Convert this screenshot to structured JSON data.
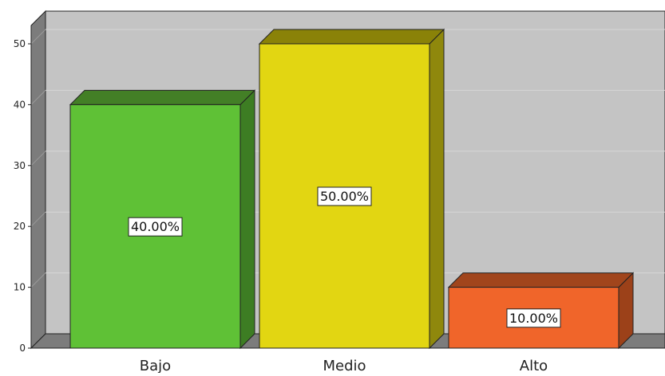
{
  "chart_data": {
    "type": "bar",
    "categories": [
      "Bajo",
      "Medio",
      "Alto"
    ],
    "values": [
      40,
      50,
      10
    ],
    "data_labels": [
      "40.00%",
      "50.00%",
      "10.00%"
    ],
    "colors": {
      "bars": [
        "#5fc136",
        "#e2d612",
        "#f0652a"
      ],
      "bar_sides": [
        "#3d7d23",
        "#8f880c",
        "#9c4119"
      ],
      "bar_tops": [
        "#437f26",
        "#8a8208",
        "#a1451c"
      ],
      "plot_back": "#c4c4c4",
      "plot_wall": "#7c7c7c",
      "grid": "#d6d6d6"
    },
    "ylim": [
      0,
      50
    ],
    "yticks": [
      0,
      10,
      20,
      30,
      40,
      50
    ],
    "grid": true,
    "style": "3d"
  }
}
